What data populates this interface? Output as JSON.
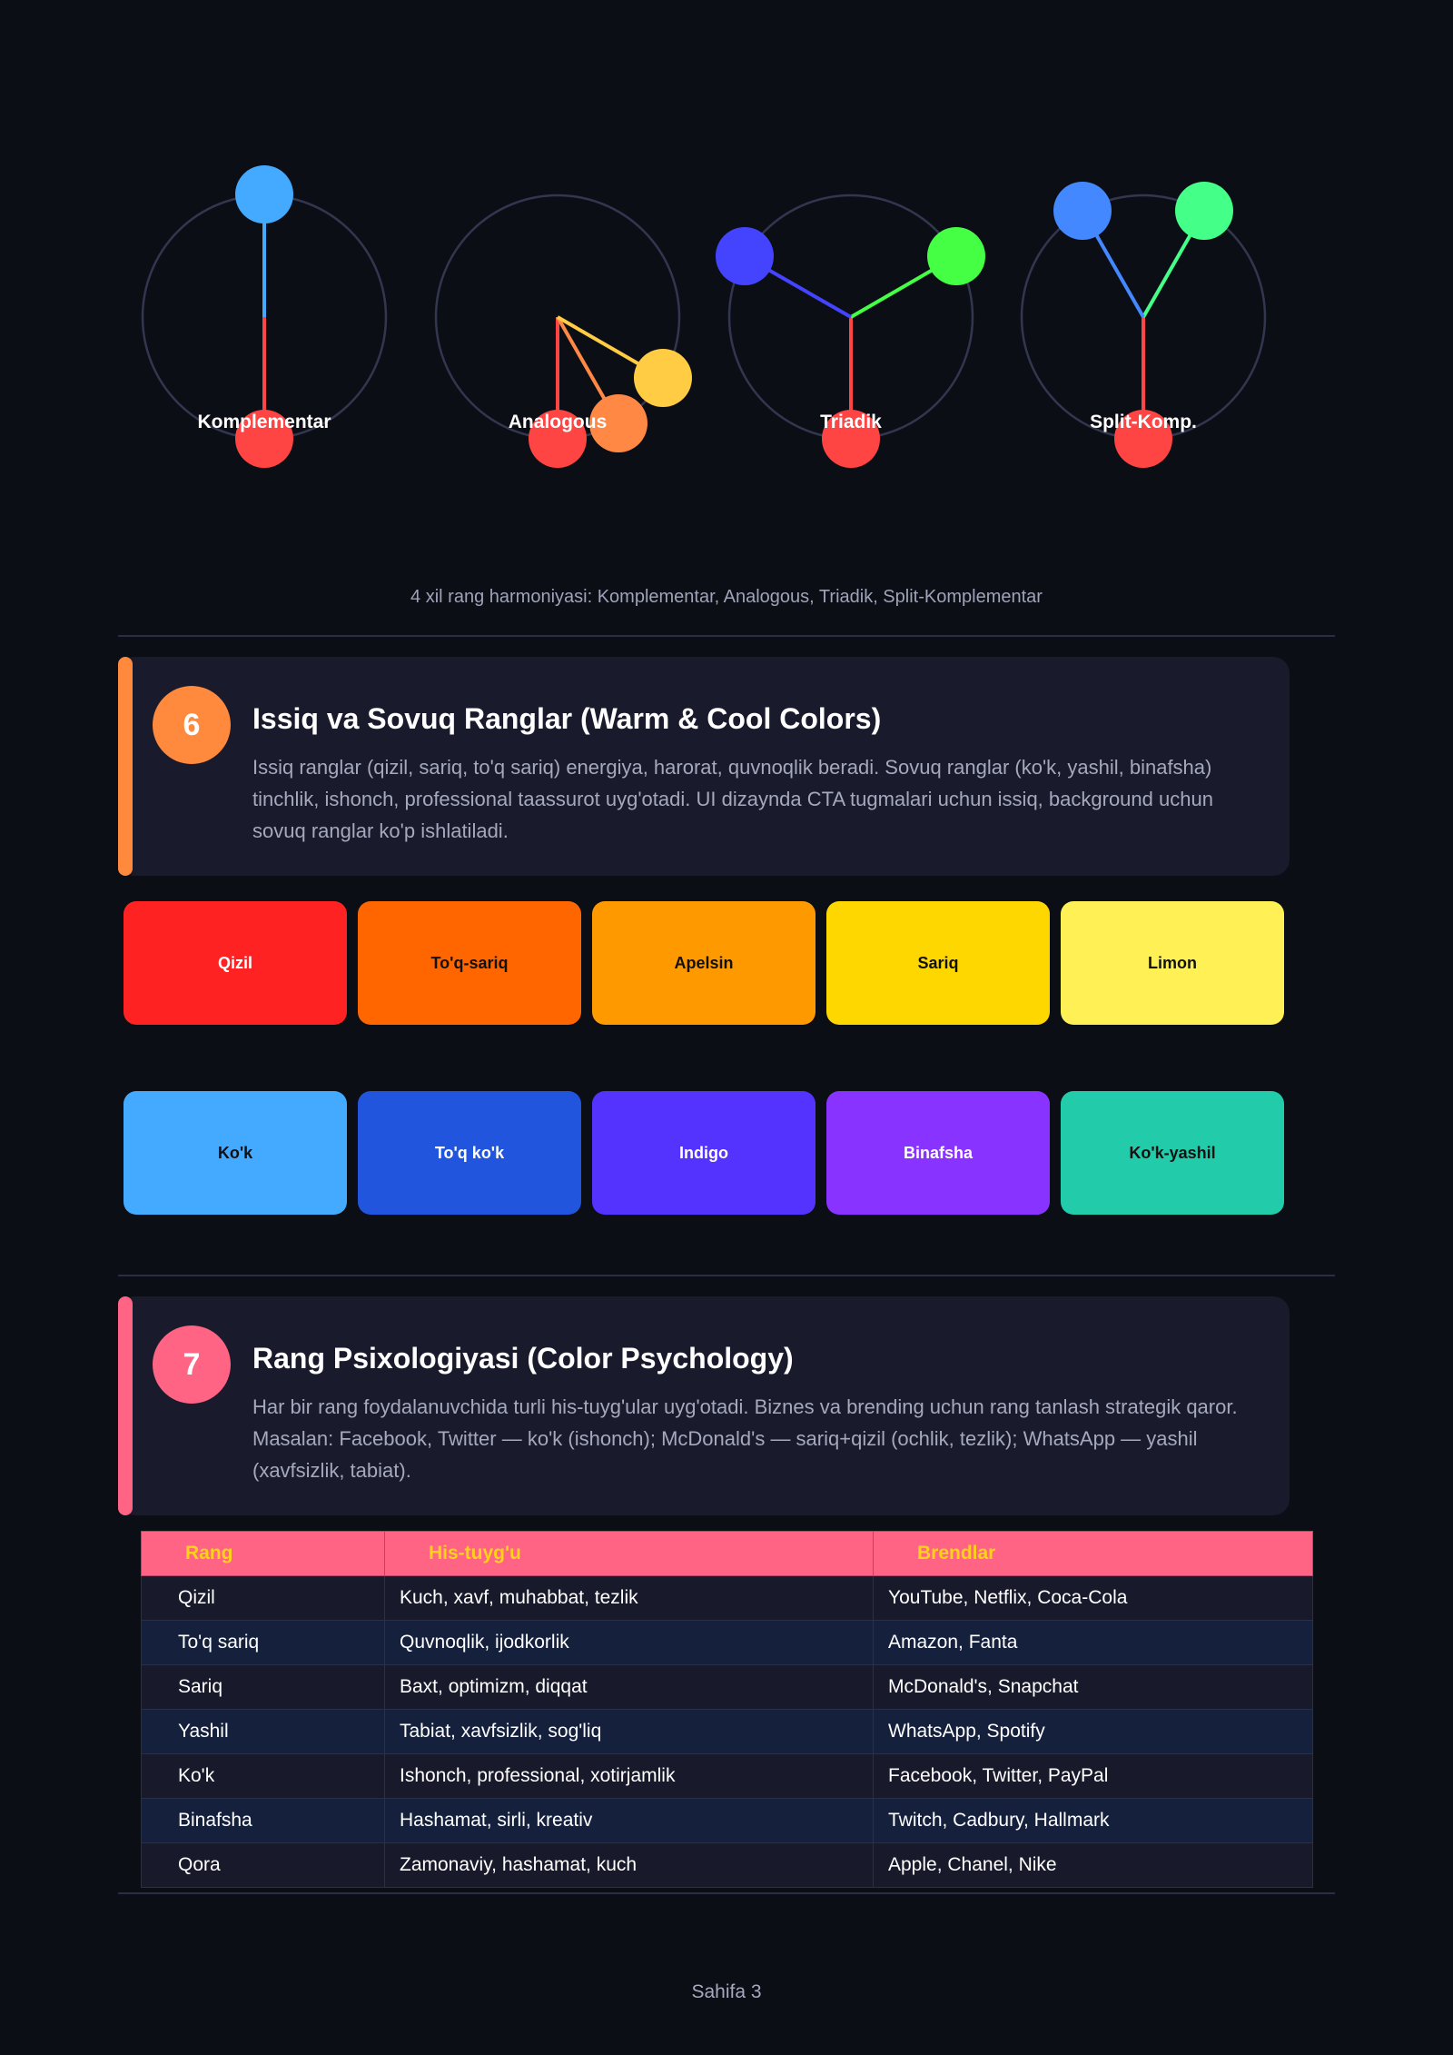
{
  "harmonies": {
    "items": [
      {
        "label": "Komplementar"
      },
      {
        "label": "Analogous"
      },
      {
        "label": "Triadik"
      },
      {
        "label": "Split-Komp."
      }
    ],
    "caption": "4 xil rang harmoniyasi: Komplementar, Analogous, Triadik, Split-Komplementar"
  },
  "section6": {
    "number": "6",
    "title": "Issiq va Sovuq Ranglar (Warm & Cool Colors)",
    "text": "Issiq ranglar (qizil, sariq, to'q sariq) energiya, harorat, quvnoqlik beradi. Sovuq ranglar (ko'k, yashil, binafsha) tinchlik, ishonch, professional taassurot uyg'otadi. UI dizaynda CTA tugmalari uchun issiq, background uchun sovuq ranglar ko'p ishlatiladi.",
    "accent": "#ff8a3d",
    "warm": [
      {
        "label": "Qizil",
        "color": "#ff2222",
        "text_color": "#ffffff"
      },
      {
        "label": "To'q-sariq",
        "color": "#ff6600",
        "text_color": "#111111"
      },
      {
        "label": "Apelsin",
        "color": "#ff9900",
        "text_color": "#111111"
      },
      {
        "label": "Sariq",
        "color": "#ffd700",
        "text_color": "#111111"
      },
      {
        "label": "Limon",
        "color": "#fff155",
        "text_color": "#111111"
      }
    ],
    "cool": [
      {
        "label": "Ko'k",
        "color": "#44aaff",
        "text_color": "#111111"
      },
      {
        "label": "To'q ko'k",
        "color": "#2255dd",
        "text_color": "#ffffff"
      },
      {
        "label": "Indigo",
        "color": "#5533ff",
        "text_color": "#ffffff"
      },
      {
        "label": "Binafsha",
        "color": "#8833ff",
        "text_color": "#ffffff"
      },
      {
        "label": "Ko'k-yashil",
        "color": "#22ccaa",
        "text_color": "#111111"
      }
    ]
  },
  "section7": {
    "number": "7",
    "title": "Rang Psixologiyasi (Color Psychology)",
    "text": "Har bir rang foydalanuvchida turli his-tuyg'ular uyg'otadi. Biznes va brending uchun rang tanlash strategik qaror. Masalan: Facebook, Twitter — ko'k (ishonch); McDonald's — sariq+qizil (ochlik, tezlik); WhatsApp — yashil (xavfsizlik, tabiat).",
    "accent": "#ff6484",
    "table": {
      "headers": [
        "Rang",
        "His-tuyg'u",
        "Brendlar"
      ],
      "rows": [
        [
          "Qizil",
          "Kuch, xavf, muhabbat, tezlik",
          "YouTube, Netflix, Coca-Cola"
        ],
        [
          "To'q sariq",
          "Quvnoqlik, ijodkorlik",
          "Amazon, Fanta"
        ],
        [
          "Sariq",
          "Baxt, optimizm, diqqat",
          "McDonald's, Snapchat"
        ],
        [
          "Yashil",
          "Tabiat, xavfsizlik, sog'liq",
          "WhatsApp, Spotify"
        ],
        [
          "Ko'k",
          "Ishonch, professional, xotirjamlik",
          "Facebook, Twitter, PayPal"
        ],
        [
          "Binafsha",
          "Hashamat, sirli, kreativ",
          "Twitch, Cadbury, Hallmark"
        ],
        [
          "Qora",
          "Zamonaviy, hashamat, kuch",
          "Apple, Chanel, Nike"
        ]
      ]
    }
  },
  "footer": {
    "text": "Sahifa 3"
  }
}
